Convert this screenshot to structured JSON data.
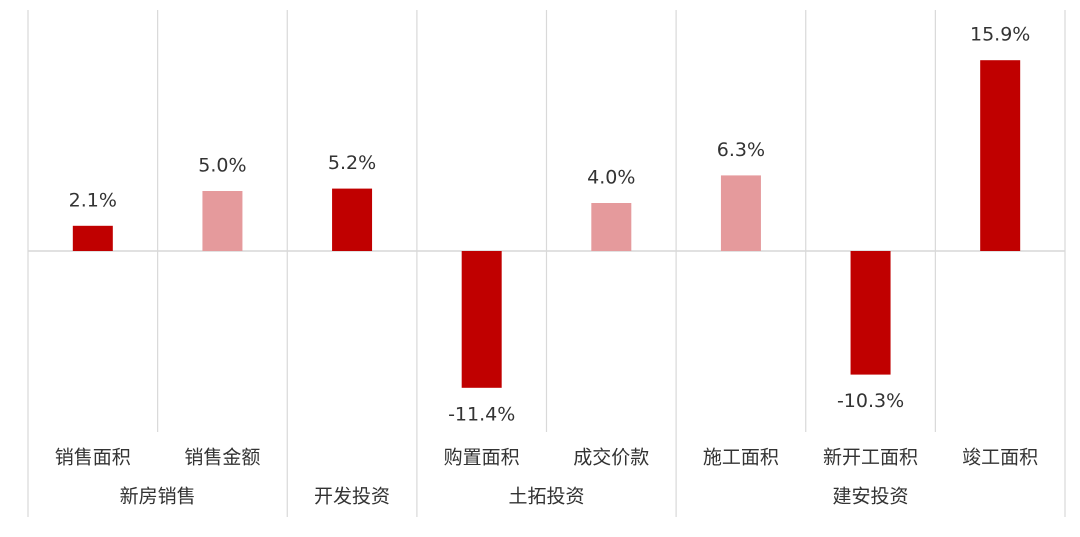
{
  "chart_data": {
    "type": "bar",
    "groups": [
      {
        "name": "新房销售",
        "categories": [
          "销售面积",
          "销售金额"
        ]
      },
      {
        "name": "开发投资",
        "categories": [
          null
        ]
      },
      {
        "name": "土拓投资",
        "categories": [
          "购置面积",
          "成交价款"
        ]
      },
      {
        "name": "建安投资",
        "categories": [
          "施工面积",
          "新开工面积",
          "竣工面积"
        ]
      }
    ],
    "values": [
      2.1,
      5.0,
      5.2,
      -11.4,
      4.0,
      6.3,
      -10.3,
      15.9
    ],
    "value_labels": [
      "2.1%",
      "5.0%",
      "5.2%",
      "-11.4%",
      "4.0%",
      "6.3%",
      "-10.3%",
      "15.9%"
    ],
    "colors": [
      "#c00000",
      "#e59a9c",
      "#c00000",
      "#c00000",
      "#e59a9c",
      "#e59a9c",
      "#c00000",
      "#c00000"
    ]
  }
}
